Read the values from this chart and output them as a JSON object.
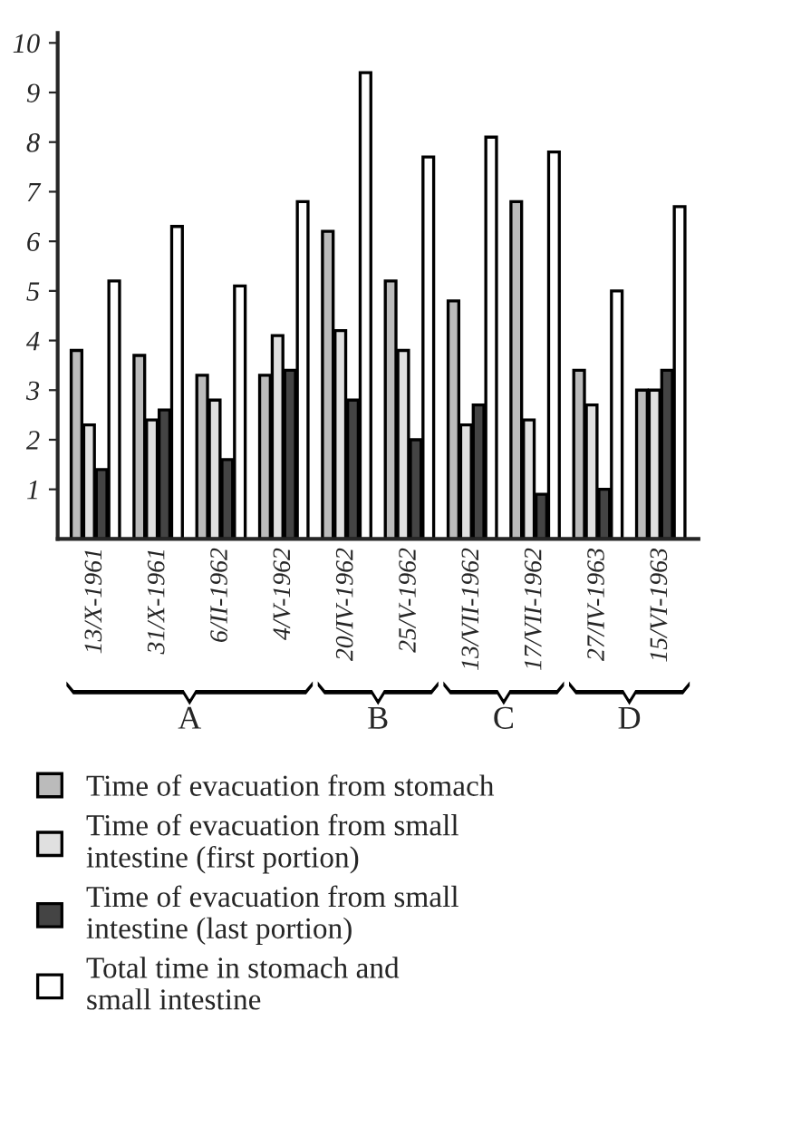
{
  "chart_data": {
    "type": "bar",
    "categories": [
      "13/X-1961",
      "31/X-1961",
      "6/II-1962",
      "4/V-1962",
      "20/IV-1962",
      "25/V-1962",
      "13/VII-1962",
      "17/VII-1962",
      "27/IV-1963",
      "15/VI-1963"
    ],
    "series": [
      {
        "name": "Time of evacuation from stomach",
        "color": "#bbbbbb",
        "values": [
          3.8,
          3.7,
          3.3,
          3.3,
          6.2,
          5.2,
          4.8,
          6.8,
          3.4,
          3.0
        ]
      },
      {
        "name": "Time of evacuation from small\nintestine (first portion)",
        "color": "#e0e0e0",
        "values": [
          2.3,
          2.4,
          2.8,
          4.1,
          4.2,
          3.8,
          2.3,
          2.4,
          2.7,
          3.0
        ]
      },
      {
        "name": "Time of evacuation from small\nintestine (last portion)",
        "color": "#444444",
        "values": [
          1.4,
          2.6,
          1.6,
          3.4,
          2.8,
          2.0,
          2.7,
          0.9,
          1.0,
          3.4
        ]
      },
      {
        "name": "Total time in stomach and\nsmall intestine",
        "color": "#ffffff",
        "values": [
          5.2,
          6.3,
          5.1,
          6.8,
          9.4,
          7.7,
          8.1,
          7.8,
          5.0,
          6.7
        ]
      }
    ],
    "ylim": [
      0,
      10.2
    ],
    "yticks": [
      1,
      2,
      3,
      4,
      5,
      6,
      7,
      8,
      9,
      10
    ],
    "annotations": [
      "A",
      "B",
      "C",
      "D"
    ],
    "legend": "bottom",
    "grid": false
  }
}
